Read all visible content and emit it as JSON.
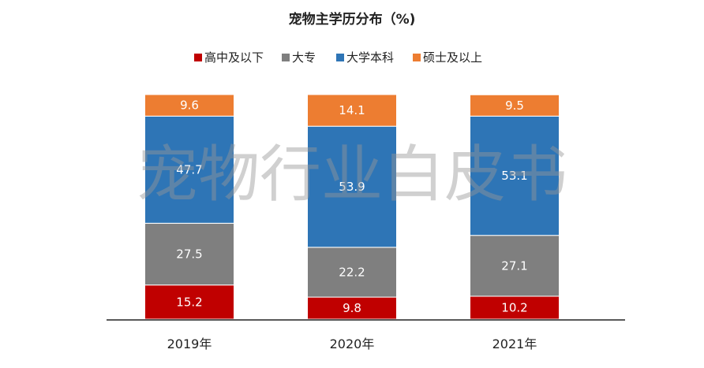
{
  "chart_data": {
    "type": "bar",
    "stacked": true,
    "title": "宠物主学历分布（%)",
    "categories": [
      "2019年",
      "2020年",
      "2021年"
    ],
    "series": [
      {
        "name": "高中及以下",
        "color": "#C00000",
        "values": [
          15.2,
          9.8,
          10.2
        ]
      },
      {
        "name": "大专",
        "color": "#7F7F7F",
        "values": [
          27.5,
          22.2,
          27.1
        ]
      },
      {
        "name": "大学本科",
        "color": "#2E75B6",
        "values": [
          47.7,
          53.9,
          53.1
        ]
      },
      {
        "name": "硕士及以上",
        "color": "#ED7D31",
        "values": [
          9.6,
          14.1,
          9.5
        ]
      }
    ],
    "ylim": [
      0,
      100
    ],
    "legend": "top-center",
    "grid": false,
    "xlabel": "",
    "ylabel": ""
  },
  "watermark": "宠物行业白皮书"
}
